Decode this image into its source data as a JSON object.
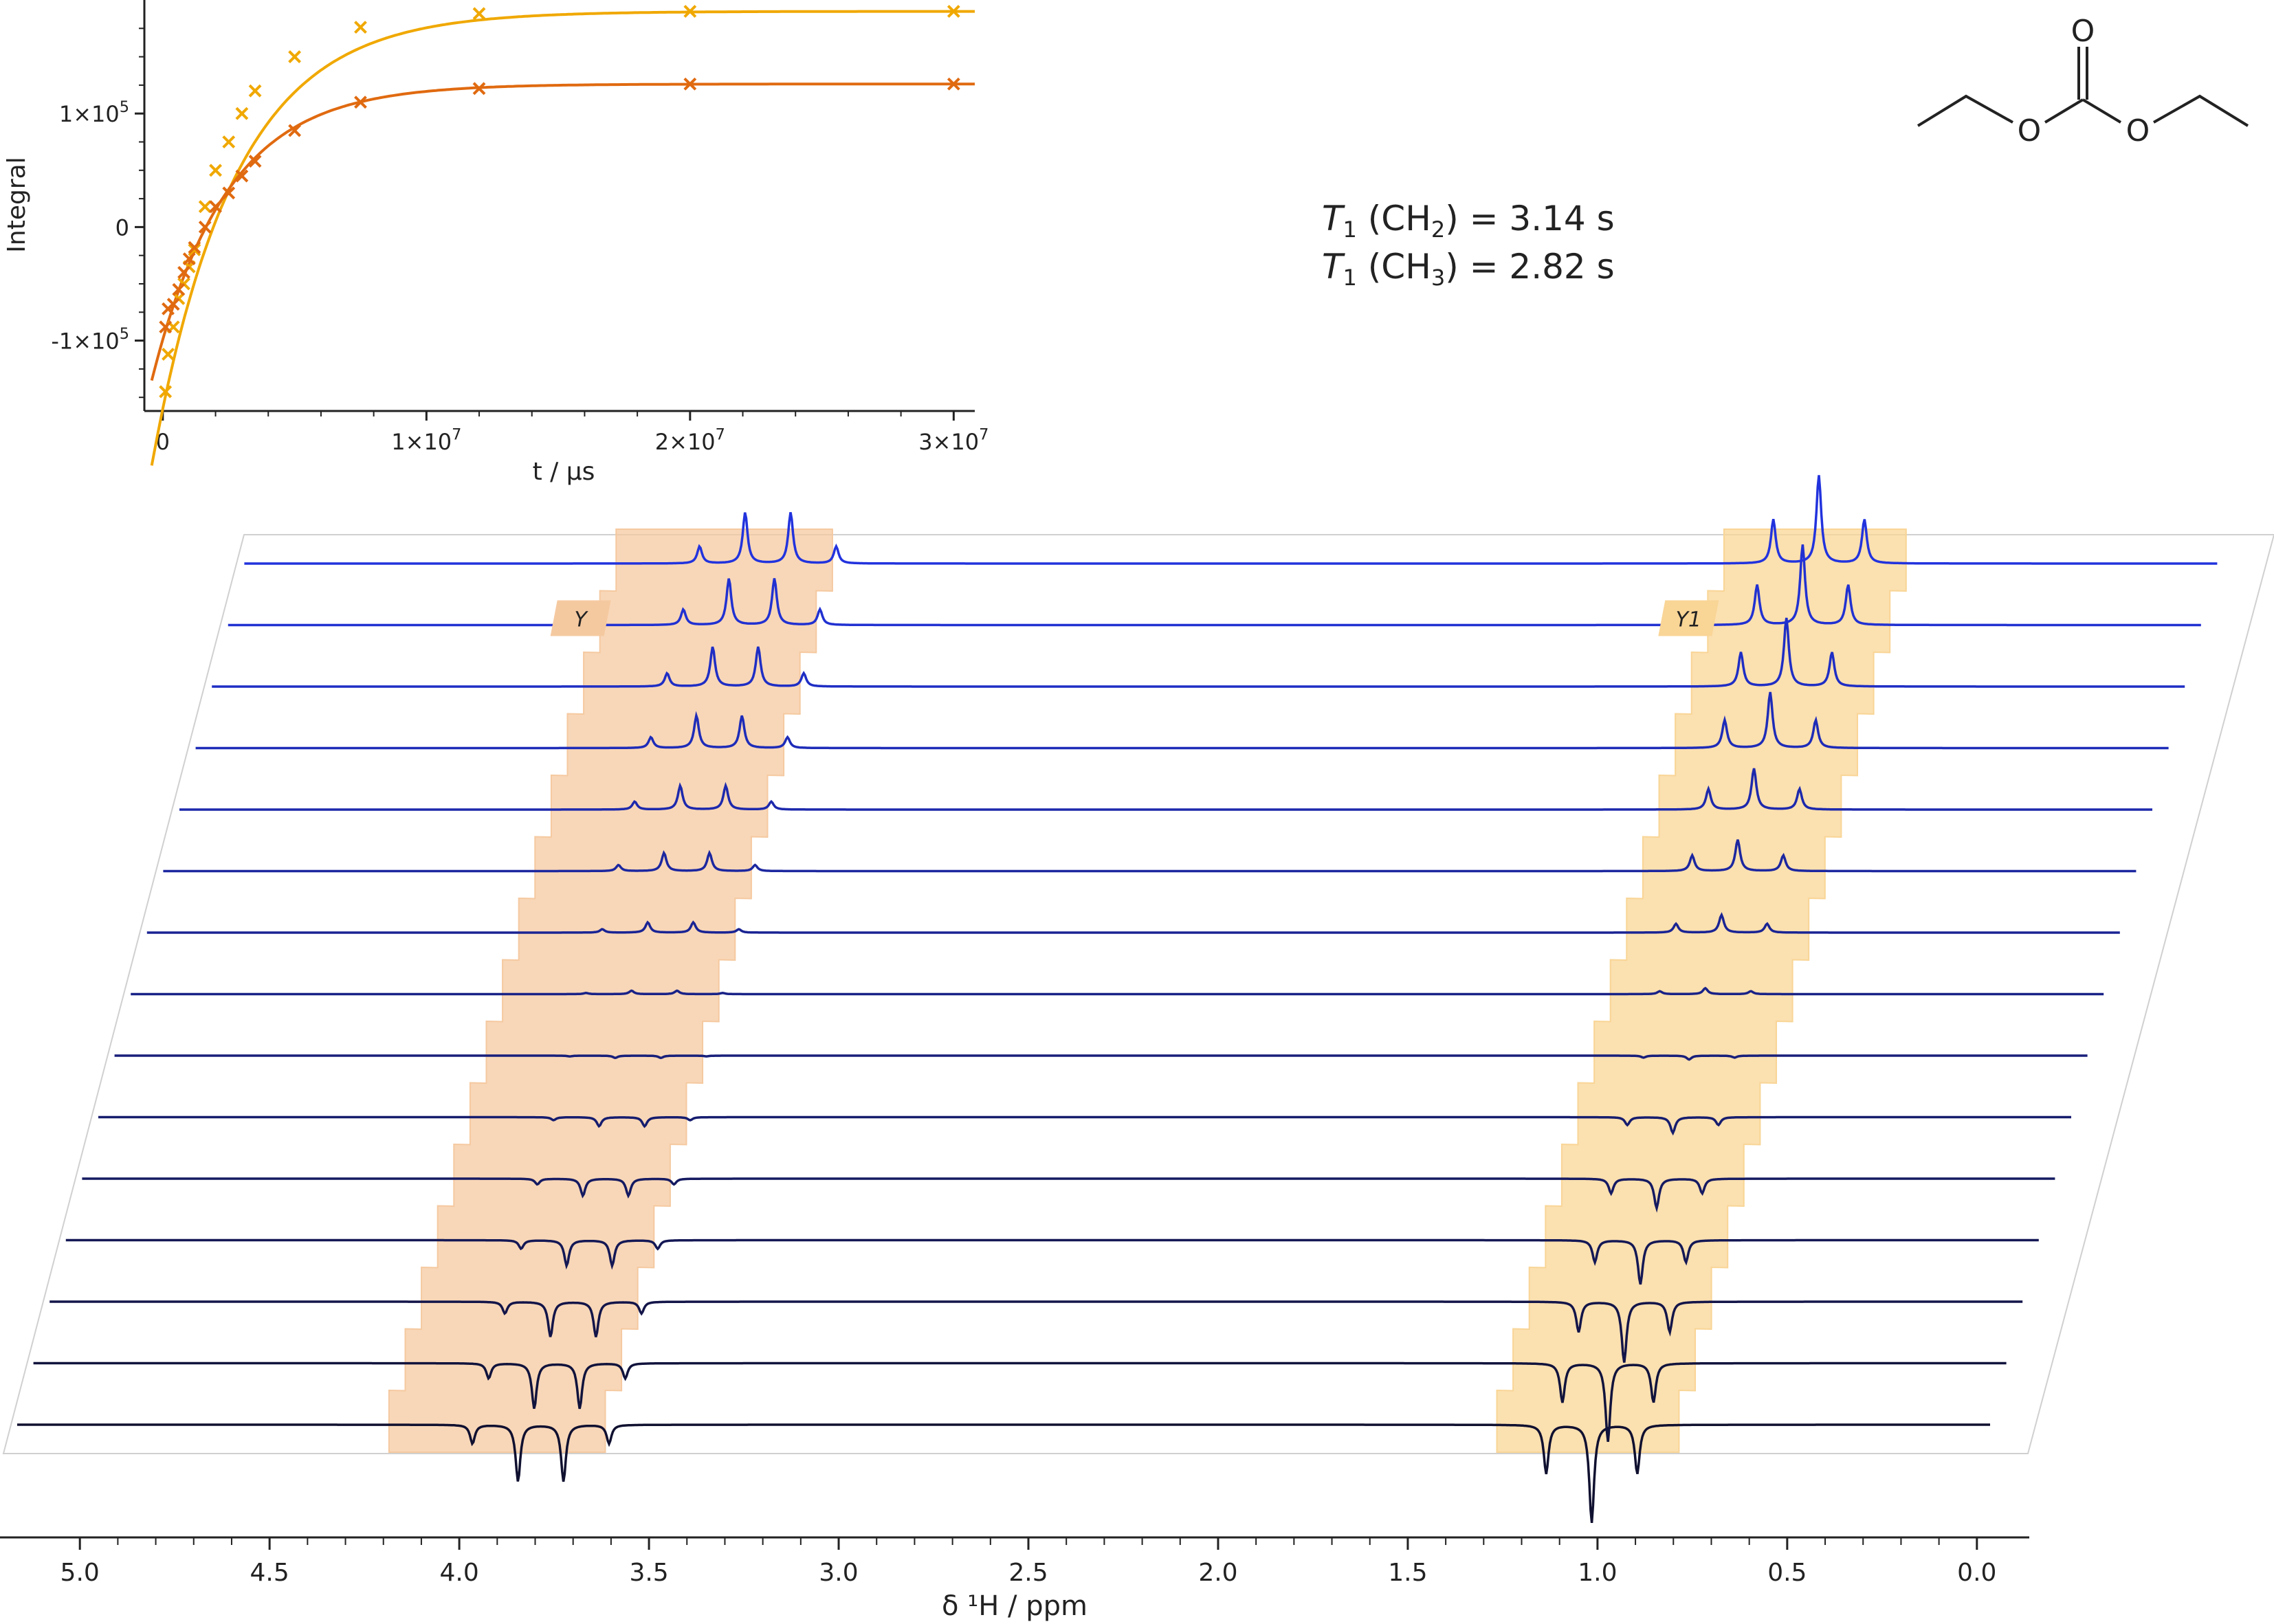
{
  "chart_data": [
    {
      "type": "scatter",
      "xlabel": "t / µs",
      "ylabel": "Integral",
      "xlim": [
        -700000,
        30800000
      ],
      "ylim": [
        -162000,
        200000
      ],
      "x_ticks": [
        {
          "value": 0,
          "label": "0"
        },
        {
          "value": 10000000,
          "label": "1×10^7"
        },
        {
          "value": 20000000,
          "label": "2×10^7"
        },
        {
          "value": 30000000,
          "label": "3×10^7"
        }
      ],
      "y_ticks": [
        {
          "value": 100000,
          "label": "1×10^5"
        },
        {
          "value": 0,
          "label": "0"
        },
        {
          "value": -100000,
          "label": "-1×10^5"
        }
      ],
      "series": [
        {
          "color": "#f0a800",
          "x": [
            100000,
            200000,
            400000,
            600000,
            800000,
            1000000,
            1200000,
            1600000,
            2000000,
            2500000,
            3000000,
            3500000,
            5000000,
            7500000,
            12000000,
            20000000,
            30000000
          ],
          "y": [
            -145000,
            -112000,
            -88000,
            -63000,
            -50000,
            -35000,
            -20000,
            18000,
            50000,
            75000,
            100000,
            120000,
            150000,
            176000,
            188000,
            190000,
            190000
          ],
          "fit": {
            "a": 190000,
            "b": 350000,
            "tau": 3140000
          }
        },
        {
          "color": "#e06a10",
          "x": [
            100000,
            200000,
            400000,
            600000,
            800000,
            1000000,
            1200000,
            1600000,
            2000000,
            2500000,
            3000000,
            3500000,
            5000000,
            7500000,
            12000000,
            20000000,
            30000000
          ],
          "y": [
            -88000,
            -72000,
            -68000,
            -55000,
            -40000,
            -28000,
            -18000,
            0,
            18000,
            30000,
            45000,
            58000,
            85000,
            110000,
            122000,
            126000,
            126000
          ],
          "fit": {
            "a": 126000,
            "b": 225000,
            "tau": 2820000
          }
        }
      ]
    },
    {
      "type": "line",
      "xlabel": "δ ¹H / ppm",
      "xlim": [
        5.1,
        -0.1
      ],
      "x_ticks": [
        "5.0",
        "4.5",
        "4.0",
        "3.5",
        "3.0",
        "2.5",
        "2.0",
        "1.5",
        "1.0",
        "0.5",
        "0.0"
      ],
      "regions": [
        {
          "label": "Y",
          "range": [
            3.55,
            4.12
          ],
          "color": "#f5c9a0",
          "center": 3.72,
          "J": 0.12,
          "multiplicity": "quartet",
          "amp_scale": 0.55
        },
        {
          "label": "Y1",
          "range": [
            0.72,
            1.2
          ],
          "color": "#f9d596",
          "center": 0.95,
          "J": 0.12,
          "multiplicity": "triplet",
          "amp_scale": 0.95
        }
      ],
      "spectra_relative_amplitude": [
        -1.0,
        -0.8,
        -0.62,
        -0.45,
        -0.3,
        -0.16,
        -0.04,
        0.06,
        0.18,
        0.32,
        0.42,
        0.57,
        0.7,
        0.82,
        0.9
      ],
      "n_spectra": 15
    }
  ],
  "annotations": {
    "t1_ch2_prefix": "T",
    "t1_ch2_sub": "1",
    "t1_ch2_group": " (CH",
    "t1_ch2_group_sub": "2",
    "t1_ch2_value": ") = 3.14 s",
    "t1_ch3_prefix": "T",
    "t1_ch3_sub": "1",
    "t1_ch3_group": " (CH",
    "t1_ch3_group_sub": "3",
    "t1_ch3_value": ") = 2.82 s"
  },
  "molecule": {
    "atoms": [
      "O",
      "O",
      "O"
    ]
  },
  "colors": {
    "spectrum_top": "#2233dd",
    "spectrum_bottom": "#101030",
    "frame": "#d0d0d0"
  }
}
